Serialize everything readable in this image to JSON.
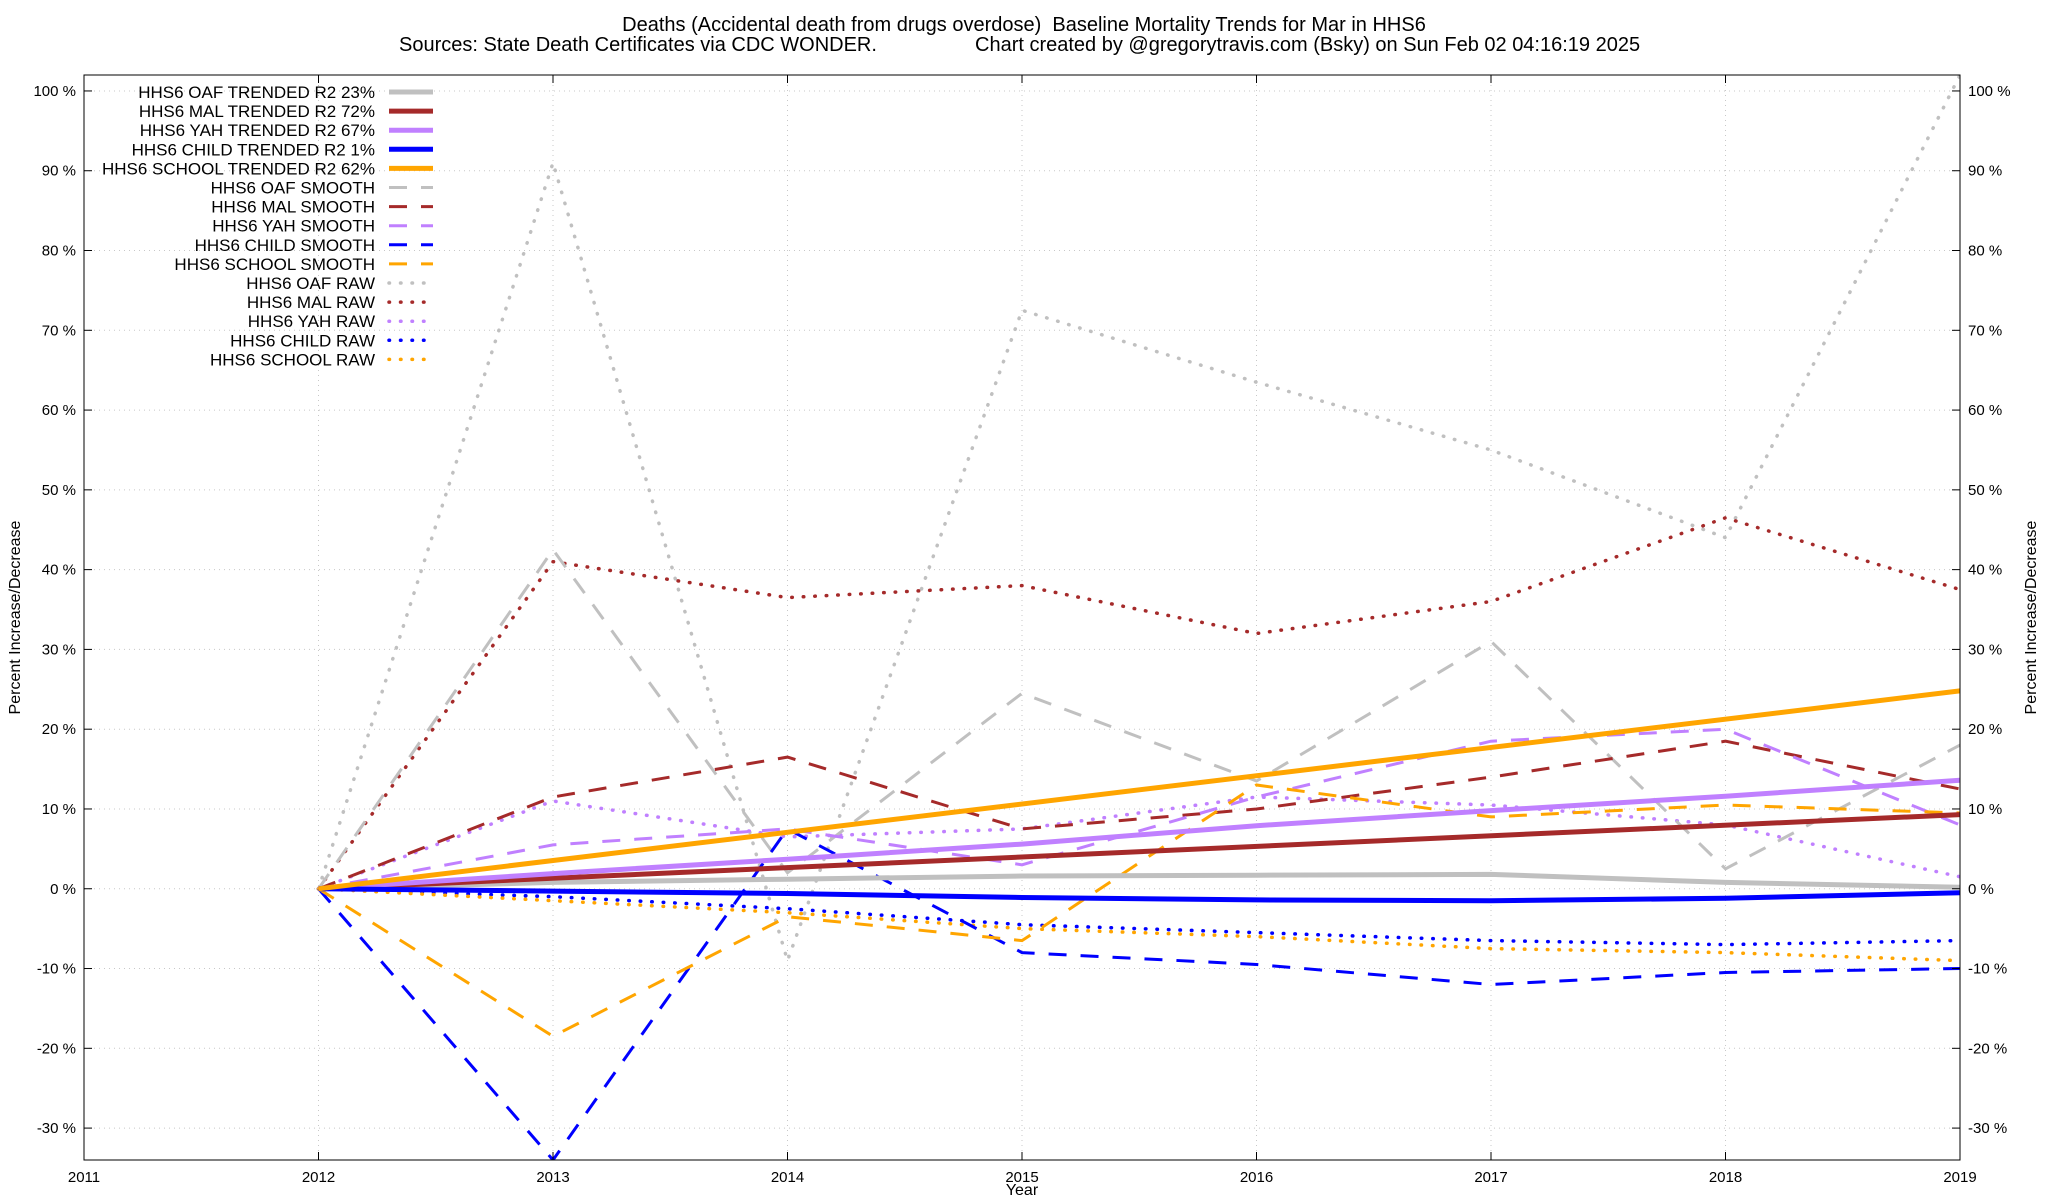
{
  "chart_data": {
    "type": "line",
    "title": "Deaths (Accidental death from drugs overdose)  Baseline Mortality Trends for Mar in HHS6",
    "subtitle_left": "Sources: State Death Certificates via CDC WONDER.",
    "subtitle_right": "Chart created by @gregorytravis.com (Bsky) on Sun Feb 02 04:16:19 2025",
    "xlabel": "Year",
    "ylabel": "Percent Increase/Decrease",
    "xlim": [
      2011,
      2019
    ],
    "ylim": [
      -34,
      102
    ],
    "x_ticks": [
      2011,
      2012,
      2013,
      2014,
      2015,
      2016,
      2017,
      2018,
      2019
    ],
    "x_tick_labels": [
      "2011",
      "2012",
      "2013",
      "2014",
      "2015",
      "2016",
      "2017",
      "2018",
      "2019"
    ],
    "y_ticks": [
      -30,
      -20,
      -10,
      0,
      10,
      20,
      30,
      40,
      50,
      60,
      70,
      80,
      90,
      100
    ],
    "y_tick_labels": [
      "-30 %",
      "-20 %",
      "-10 %",
      "0 %",
      "10 %",
      "20 %",
      "30 %",
      "40 %",
      "50 %",
      "60 %",
      "70 %",
      "80 %",
      "90 %",
      "100 %"
    ],
    "grid": true,
    "legend_position": "top-left",
    "series": [
      {
        "name": "HHS6 OAF TRENDED R2",
        "r2": "23%",
        "style": "solid",
        "color": "#c0c0c0",
        "x": [
          2012,
          2013,
          2014,
          2015,
          2016,
          2017,
          2018,
          2019
        ],
        "values": [
          0,
          0.8,
          1.2,
          1.6,
          1.7,
          1.8,
          0.8,
          0.2
        ]
      },
      {
        "name": "HHS6 MAL TRENDED R2",
        "r2": "72%",
        "style": "solid",
        "color": "#a52a2a",
        "x": [
          2012,
          2019
        ],
        "values": [
          0,
          9.3
        ]
      },
      {
        "name": "HHS6 YAH TRENDED R2",
        "r2": "67%",
        "style": "solid",
        "color": "#c080ff",
        "x": [
          2012,
          2013,
          2014,
          2015,
          2016,
          2017,
          2018,
          2019
        ],
        "values": [
          0,
          1.9,
          3.7,
          5.6,
          7.9,
          9.8,
          11.6,
          13.6
        ]
      },
      {
        "name": "HHS6 CHILD TRENDED R2",
        "r2": "1%",
        "style": "solid",
        "color": "#0000ff",
        "x": [
          2012,
          2013,
          2014,
          2015,
          2016,
          2017,
          2018,
          2019
        ],
        "values": [
          0,
          -0.3,
          -0.6,
          -1.1,
          -1.4,
          -1.5,
          -1.2,
          -0.5
        ]
      },
      {
        "name": "HHS6 SCHOOL TRENDED R2",
        "r2": "62%",
        "style": "solid",
        "color": "#ffa500",
        "x": [
          2012,
          2019
        ],
        "values": [
          0,
          24.8
        ]
      },
      {
        "name": "HHS6 OAF SMOOTH",
        "style": "dashed",
        "color": "#c0c0c0",
        "x": [
          2012,
          2013,
          2014,
          2015,
          2016,
          2017,
          2018,
          2019
        ],
        "values": [
          0,
          42.5,
          2,
          24.5,
          13.5,
          31,
          2.5,
          18
        ]
      },
      {
        "name": "HHS6 MAL SMOOTH",
        "style": "dashed",
        "color": "#a52a2a",
        "x": [
          2012,
          2013,
          2014,
          2015,
          2016,
          2017,
          2018,
          2019
        ],
        "values": [
          0,
          11.5,
          16.5,
          7.5,
          10,
          14,
          18.5,
          12.5
        ]
      },
      {
        "name": "HHS6 YAH SMOOTH",
        "style": "dashed",
        "color": "#c080ff",
        "x": [
          2012,
          2013,
          2014,
          2015,
          2016,
          2017,
          2018,
          2019
        ],
        "values": [
          0,
          5.5,
          7.5,
          3,
          11.5,
          18.5,
          20,
          8
        ]
      },
      {
        "name": "HHS6 CHILD SMOOTH",
        "style": "dashed",
        "color": "#0000ff",
        "x": [
          2012,
          2013,
          2014,
          2015,
          2016,
          2017,
          2018,
          2019
        ],
        "values": [
          0,
          -34,
          7.5,
          -8,
          -9.5,
          -12,
          -10.5,
          -10
        ]
      },
      {
        "name": "HHS6 SCHOOL SMOOTH",
        "style": "dashed",
        "color": "#ffa500",
        "x": [
          2012,
          2013,
          2014,
          2015,
          2016,
          2017,
          2018,
          2019
        ],
        "values": [
          0,
          -18.5,
          -3.5,
          -6.5,
          13,
          9,
          10.5,
          9.5
        ]
      },
      {
        "name": "HHS6 OAF RAW",
        "style": "dotted",
        "color": "#c0c0c0",
        "x": [
          2012,
          2013,
          2014,
          2015,
          2016,
          2017,
          2018,
          2019
        ],
        "values": [
          0,
          91,
          -9,
          72.5,
          63.5,
          55,
          44,
          102
        ]
      },
      {
        "name": "HHS6 MAL RAW",
        "style": "dotted",
        "color": "#a52a2a",
        "x": [
          2012,
          2013,
          2014,
          2015,
          2016,
          2017,
          2018,
          2019
        ],
        "values": [
          0,
          41,
          36.5,
          38,
          32,
          36,
          46.5,
          37.5
        ]
      },
      {
        "name": "HHS6 YAH RAW",
        "style": "dotted",
        "color": "#c080ff",
        "x": [
          2012,
          2013,
          2014,
          2015,
          2016,
          2017,
          2018,
          2019
        ],
        "values": [
          0,
          11,
          6.5,
          7.5,
          11.5,
          10.5,
          8,
          1.5
        ]
      },
      {
        "name": "HHS6 CHILD RAW",
        "style": "dotted",
        "color": "#0000ff",
        "x": [
          2012,
          2013,
          2014,
          2015,
          2016,
          2017,
          2018,
          2019
        ],
        "values": [
          0,
          -1,
          -2.5,
          -4.5,
          -5.5,
          -6.5,
          -7,
          -6.5
        ]
      },
      {
        "name": "HHS6 SCHOOL RAW",
        "style": "dotted",
        "color": "#ffa500",
        "x": [
          2012,
          2013,
          2014,
          2015,
          2016,
          2017,
          2018,
          2019
        ],
        "values": [
          0,
          -1.5,
          -3,
          -5,
          -6,
          -7.5,
          -8,
          -9
        ]
      }
    ]
  }
}
